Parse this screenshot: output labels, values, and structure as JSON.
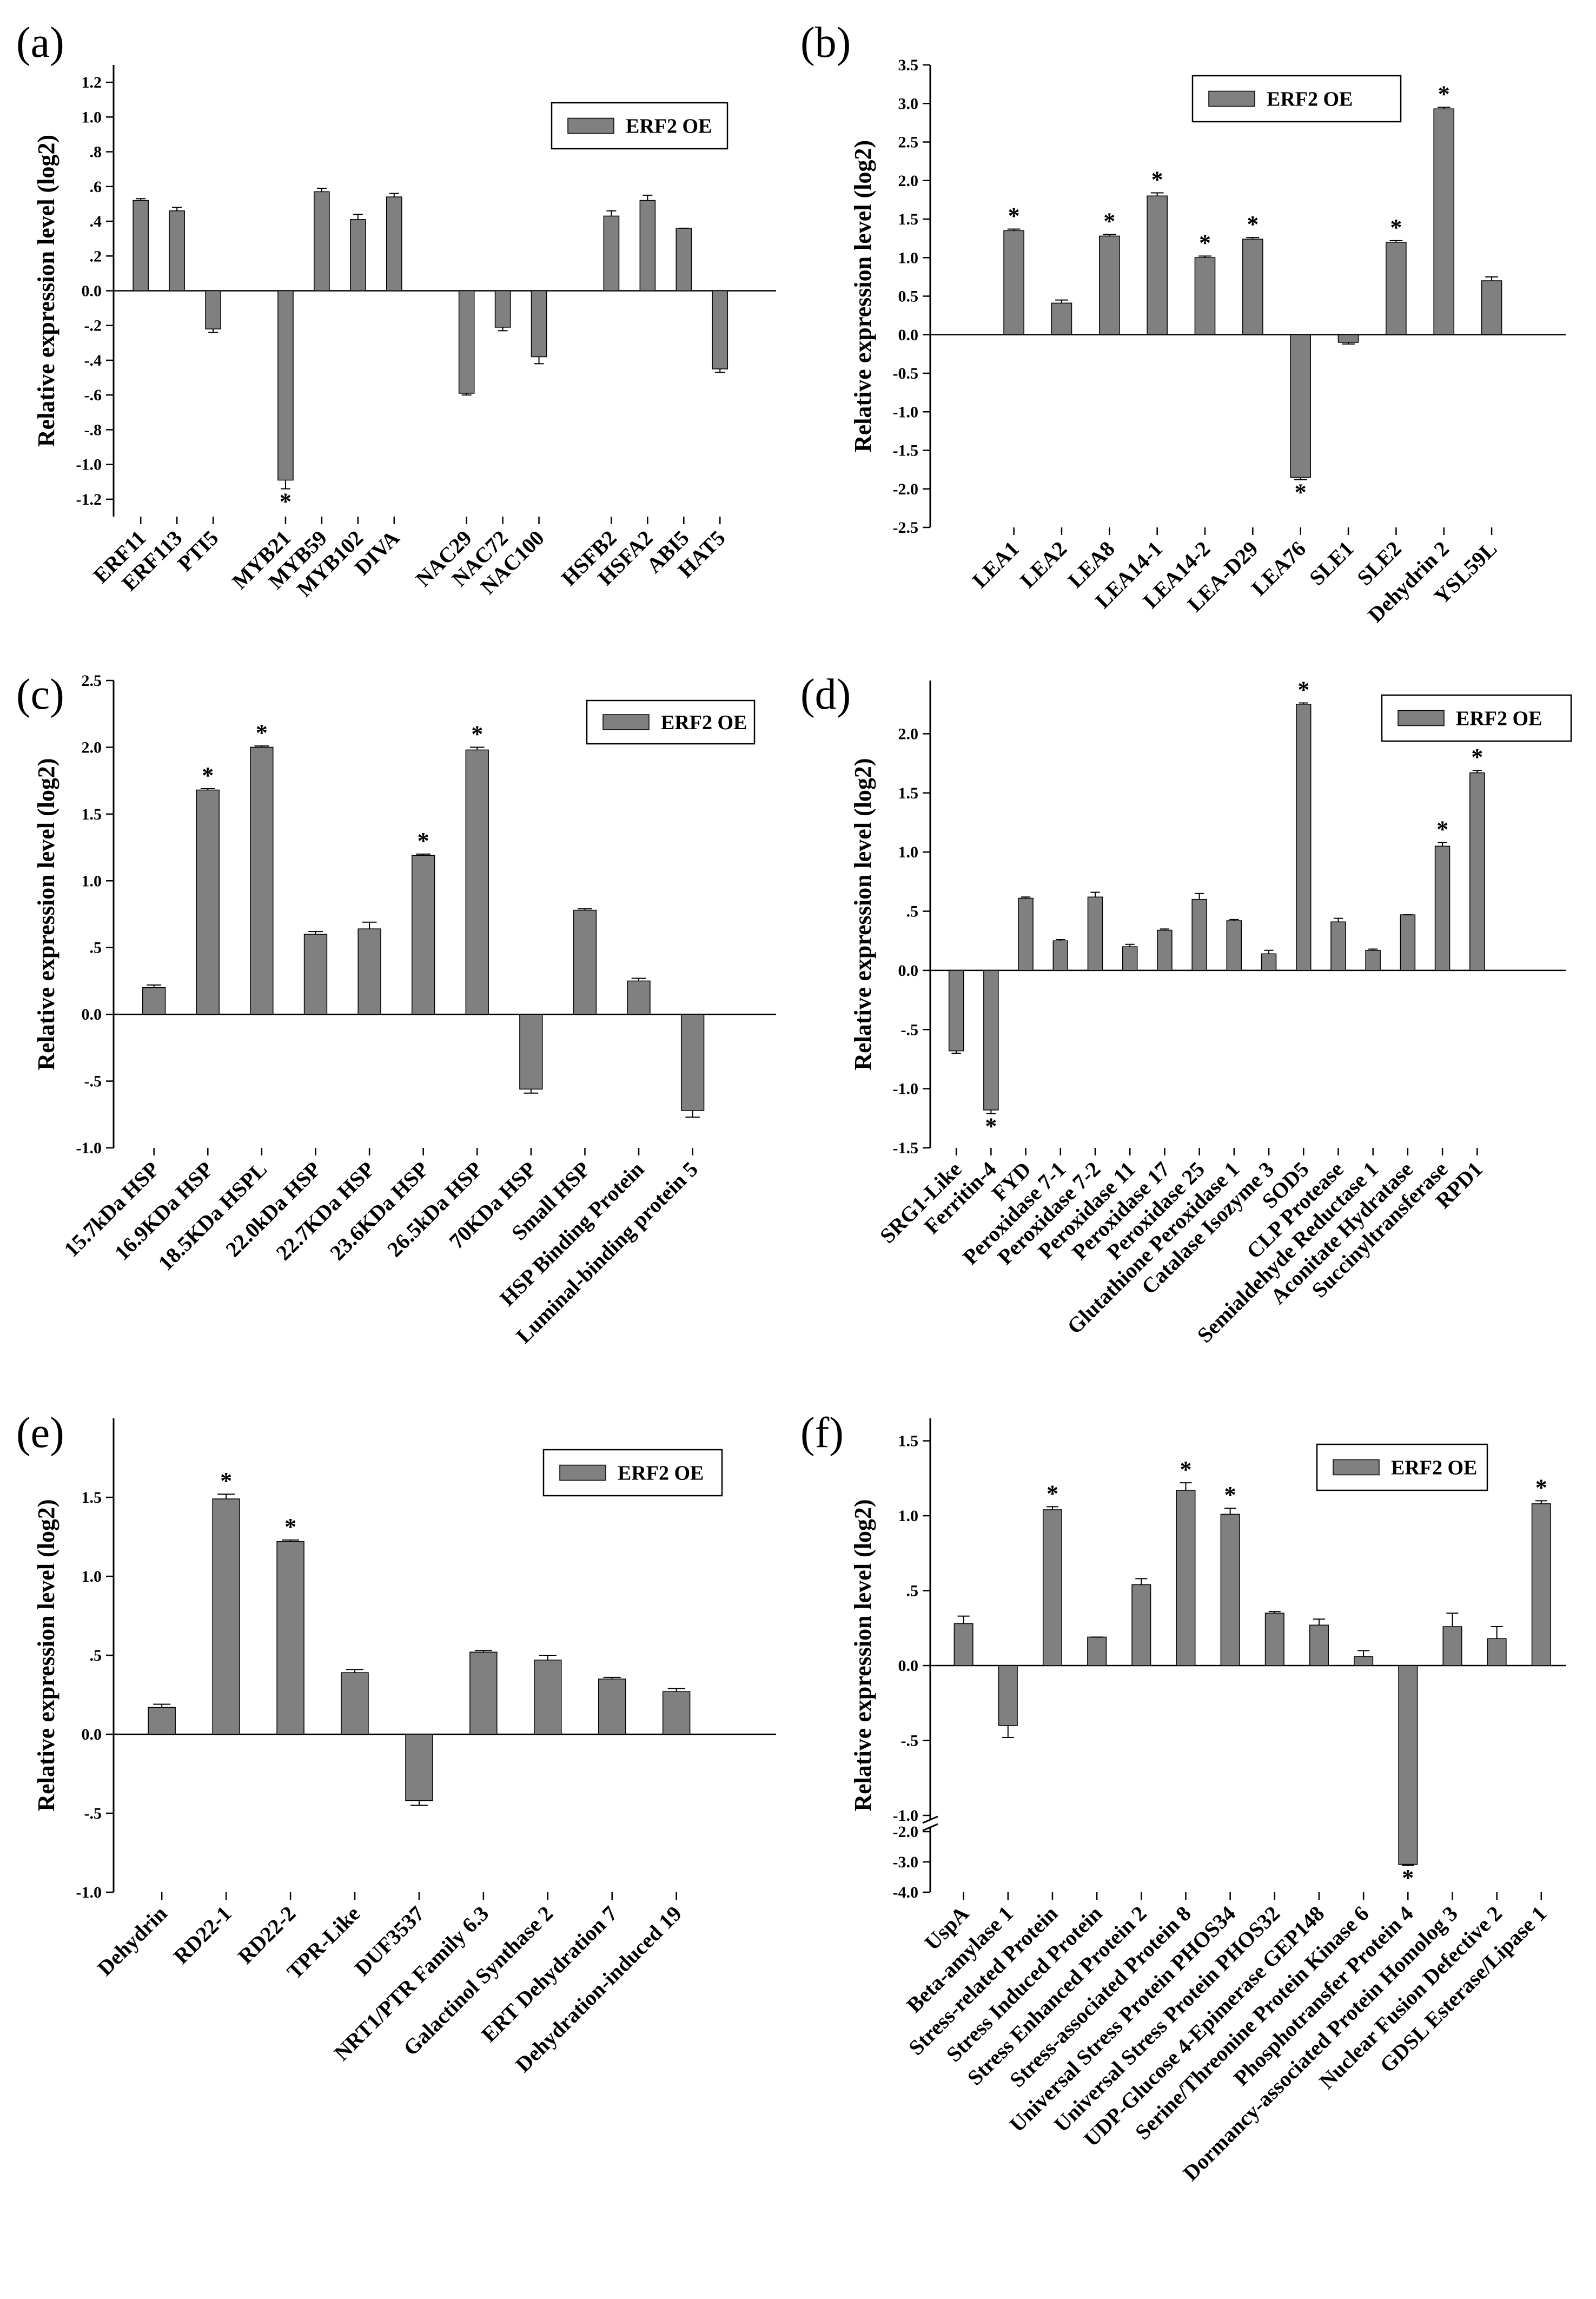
{
  "colors": {
    "bar": "#808080",
    "axis": "#000000",
    "legend_border": "#000000"
  },
  "chart_data": [
    {
      "panel": "(a)",
      "type": "bar",
      "ylabel": "Relative expression level (log2)",
      "legend": "ERF2 OE",
      "legend_position": "top-right",
      "ylim": [
        -1.3,
        1.3
      ],
      "yticks": [
        -1.2,
        -1.0,
        -0.8,
        -0.6,
        -0.4,
        -0.2,
        0.0,
        0.2,
        0.4,
        0.6,
        0.8,
        1.0,
        1.2
      ],
      "ytick_labels": [
        "-1.2",
        "-1.0",
        "-.8",
        "-.6",
        "-.4",
        "-.2",
        "0.0",
        ".2",
        ".4",
        ".6",
        ".8",
        "1.0",
        "1.2"
      ],
      "slots": 18,
      "categories": [
        "ERF11",
        "ERF113",
        "PTI5",
        "MYB21",
        "MYB59",
        "MYB102",
        "DIVA",
        "NAC29",
        "NAC72",
        "NAC100",
        "HSFB2",
        "HSFA2",
        "ABI5",
        "HAT5"
      ],
      "slot_index": [
        0,
        1,
        2,
        4,
        5,
        6,
        7,
        9,
        10,
        11,
        13,
        14,
        15,
        16
      ],
      "values": [
        0.52,
        0.46,
        -0.22,
        -1.09,
        0.57,
        0.41,
        0.54,
        -0.59,
        -0.21,
        -0.38,
        0.43,
        0.52,
        0.36,
        -0.45
      ],
      "errors": [
        0.01,
        0.02,
        0.02,
        0.05,
        0.02,
        0.03,
        0.02,
        0.01,
        0.02,
        0.04,
        0.03,
        0.03,
        0.0,
        0.02
      ],
      "significant": [
        false,
        false,
        false,
        true,
        false,
        false,
        false,
        false,
        false,
        false,
        false,
        false,
        false,
        false
      ],
      "label_rotation": -45
    },
    {
      "panel": "(b)",
      "type": "bar",
      "ylabel": "Relative expression level (log2)",
      "legend": "ERF2 OE",
      "legend_position": "top-left",
      "ylim": [
        -2.5,
        3.5
      ],
      "yticks": [
        -2.5,
        -2.0,
        -1.5,
        -1.0,
        -0.5,
        0.0,
        0.5,
        1.0,
        1.5,
        2.0,
        2.5,
        3.0,
        3.5
      ],
      "ytick_labels": [
        "-2.5",
        "-2.0",
        "-1.5",
        "-1.0",
        "-0.5",
        "0.0",
        "0.5",
        "1.0",
        "1.5",
        "2.0",
        "2.5",
        "3.0",
        "3.5"
      ],
      "slots": 13,
      "categories": [
        "LEA1",
        "LEA2",
        "LEA8",
        "LEA14-1",
        "LEA14-2",
        "LEA-D29",
        "LEA76",
        "SLE1",
        "SLE2",
        "Dehydrin 2",
        "YSL59L"
      ],
      "slot_index": [
        1,
        2,
        3,
        4,
        5,
        6,
        7,
        8,
        9,
        10,
        11
      ],
      "values": [
        1.35,
        0.41,
        1.28,
        1.8,
        1.0,
        1.24,
        -1.85,
        -0.1,
        1.2,
        2.93,
        0.7
      ],
      "errors": [
        0.02,
        0.04,
        0.02,
        0.04,
        0.02,
        0.02,
        0.03,
        0.02,
        0.02,
        0.02,
        0.05
      ],
      "significant": [
        true,
        false,
        true,
        true,
        true,
        true,
        true,
        false,
        true,
        true,
        false
      ],
      "label_rotation": -45
    },
    {
      "panel": "(c)",
      "type": "bar",
      "ylabel": "Relative expression level (log2)",
      "legend": "ERF2 OE",
      "legend_position": "top-right",
      "ylim": [
        -1.0,
        2.5
      ],
      "yticks": [
        -1.0,
        -0.5,
        0.0,
        0.5,
        1.0,
        1.5,
        2.0,
        2.5
      ],
      "ytick_labels": [
        "-1.0",
        "-.5",
        "0.0",
        ".5",
        "1.0",
        "1.5",
        "2.0",
        "2.5"
      ],
      "slots": 12,
      "categories": [
        "15.7kDa HSP",
        "16.9KDa HSP",
        "18.5KDa HSPL",
        "22.0kDa HSP",
        "22.7KDa HSP",
        "23.6KDa HSP",
        "26.5kDa HSP",
        "70KDa HSP",
        "Small HSP",
        "HSP Binding Protein",
        "Luminal-binding protein 5"
      ],
      "slot_index": [
        0,
        1,
        2,
        3,
        4,
        5,
        6,
        7,
        8,
        9,
        10
      ],
      "values": [
        0.2,
        1.68,
        2.0,
        0.6,
        0.64,
        1.19,
        1.98,
        -0.56,
        0.78,
        0.25,
        -0.72
      ],
      "errors": [
        0.02,
        0.01,
        0.01,
        0.02,
        0.05,
        0.01,
        0.02,
        0.03,
        0.01,
        0.02,
        0.05
      ],
      "significant": [
        false,
        true,
        true,
        false,
        false,
        true,
        true,
        false,
        false,
        false,
        false
      ],
      "label_rotation": -45
    },
    {
      "panel": "(d)",
      "type": "bar",
      "ylabel": "Relative expression level (log2)",
      "legend": "ERF2 OE",
      "legend_position": "top-right",
      "ylim": [
        -1.5,
        2.45
      ],
      "yticks": [
        -1.5,
        -1.0,
        -0.5,
        0.0,
        0.5,
        1.0,
        1.5,
        2.0
      ],
      "ytick_labels": [
        "-1.5",
        "-1.0",
        "-.5",
        "0.0",
        ".5",
        "1.0",
        "1.5",
        "2.0"
      ],
      "slots": 18,
      "categories": [
        "SRG1-Like",
        "Ferritin-4",
        "FYD",
        "Peroxidase 7-1",
        "Peroxidase 7-2",
        "Peroxidase 11",
        "Peroxidase 17",
        "Peroxidase 25",
        "Glutathione Peroxidase 1",
        "Catalase Isozyme 3",
        "SOD5",
        "CLP Protease",
        "Semialdehyde Reductase 1",
        "Aconitate Hydratase",
        "Succinyltransferase",
        "RPD1"
      ],
      "slot_index": [
        0,
        1,
        2,
        3,
        4,
        5,
        6,
        7,
        8,
        9,
        10,
        11,
        12,
        13,
        14,
        15
      ],
      "values": [
        -0.68,
        -1.18,
        0.61,
        0.25,
        0.62,
        0.2,
        0.34,
        0.6,
        0.42,
        0.14,
        2.25,
        0.41,
        0.17,
        0.47,
        1.05,
        1.67
      ],
      "errors": [
        0.02,
        0.03,
        0.01,
        0.01,
        0.04,
        0.02,
        0.01,
        0.05,
        0.01,
        0.03,
        0.01,
        0.03,
        0.01,
        0.0,
        0.03,
        0.02
      ],
      "significant": [
        false,
        true,
        false,
        false,
        false,
        false,
        false,
        false,
        false,
        false,
        true,
        false,
        false,
        false,
        true,
        true
      ],
      "label_rotation": -45
    },
    {
      "panel": "(e)",
      "type": "bar",
      "ylabel": "Relative expression level (log2)",
      "legend": "ERF2 OE",
      "legend_position": "top-right",
      "ylim": [
        -1.0,
        2.0
      ],
      "yticks": [
        -1.0,
        -0.5,
        0.0,
        0.5,
        1.0,
        1.5
      ],
      "ytick_labels": [
        "-1.0",
        "-.5",
        "0.0",
        ".5",
        "1.0",
        "1.5"
      ],
      "slots": 10,
      "categories": [
        "Dehydrin",
        "RD22-1",
        "RD22-2",
        "TPR-Like",
        "DUF3537",
        "NRT1/PTR Family 6.3",
        "Galactinol Synthase 2",
        "ERT Dehydration 7",
        "Dehydration-induced 19"
      ],
      "slot_index": [
        0,
        1,
        2,
        3,
        4,
        5,
        6,
        7,
        8
      ],
      "values": [
        0.17,
        1.49,
        1.22,
        0.39,
        -0.42,
        0.52,
        0.47,
        0.35,
        0.27
      ],
      "errors": [
        0.02,
        0.03,
        0.01,
        0.02,
        0.03,
        0.01,
        0.03,
        0.01,
        0.02
      ],
      "significant": [
        false,
        true,
        true,
        false,
        false,
        false,
        false,
        false,
        false
      ],
      "label_rotation": -45
    },
    {
      "panel": "(f)",
      "type": "bar",
      "ylabel": "Relative expression level (log2)",
      "legend": "ERF2 OE",
      "legend_position": "top-right",
      "axis_break": {
        "lower_range": [
          -4.0,
          -2.0
        ],
        "upper_range": [
          -1.0,
          1.65
        ]
      },
      "yticks": [
        -4.0,
        -3.0,
        -2.0,
        -1.0,
        -0.5,
        0.0,
        0.5,
        1.0,
        1.5
      ],
      "ytick_labels": [
        "-4.0",
        "-3.0",
        "-2.0",
        "-1.0",
        "-.5",
        "0.0",
        ".5",
        "1.0",
        "1.5"
      ],
      "slots": 14,
      "categories": [
        "UspA",
        "Beta-amylase 1",
        "Stress-related Protein",
        "Stress Induced Protein",
        "Stress Enhanced Protein 2",
        "Stress-associated Protein 8",
        "Universal Stress Protein PHOS34",
        "Universal Stress Protein PHOS32",
        "UDP-Glucose 4-Epimerase GEP148",
        "Serine/Threonine Protein Kinase 6",
        "Phosphotransfer Protein 4",
        "Dormancy-associated Protein Homolog 3",
        "Nuclear Fusion Defective 2",
        "GDSL Esterase/Lipase 1"
      ],
      "slot_index": [
        0,
        1,
        2,
        3,
        4,
        5,
        6,
        7,
        8,
        9,
        10,
        11,
        12,
        13
      ],
      "values": [
        0.28,
        -0.4,
        1.04,
        0.19,
        0.54,
        1.17,
        1.01,
        0.35,
        0.27,
        0.06,
        -3.08,
        0.26,
        0.18,
        1.08
      ],
      "errors": [
        0.05,
        0.08,
        0.02,
        0.0,
        0.04,
        0.05,
        0.04,
        0.01,
        0.04,
        0.04,
        0.03,
        0.09,
        0.08,
        0.02
      ],
      "significant": [
        false,
        false,
        true,
        false,
        false,
        true,
        true,
        false,
        false,
        false,
        true,
        false,
        false,
        true
      ],
      "label_rotation": -45
    }
  ]
}
